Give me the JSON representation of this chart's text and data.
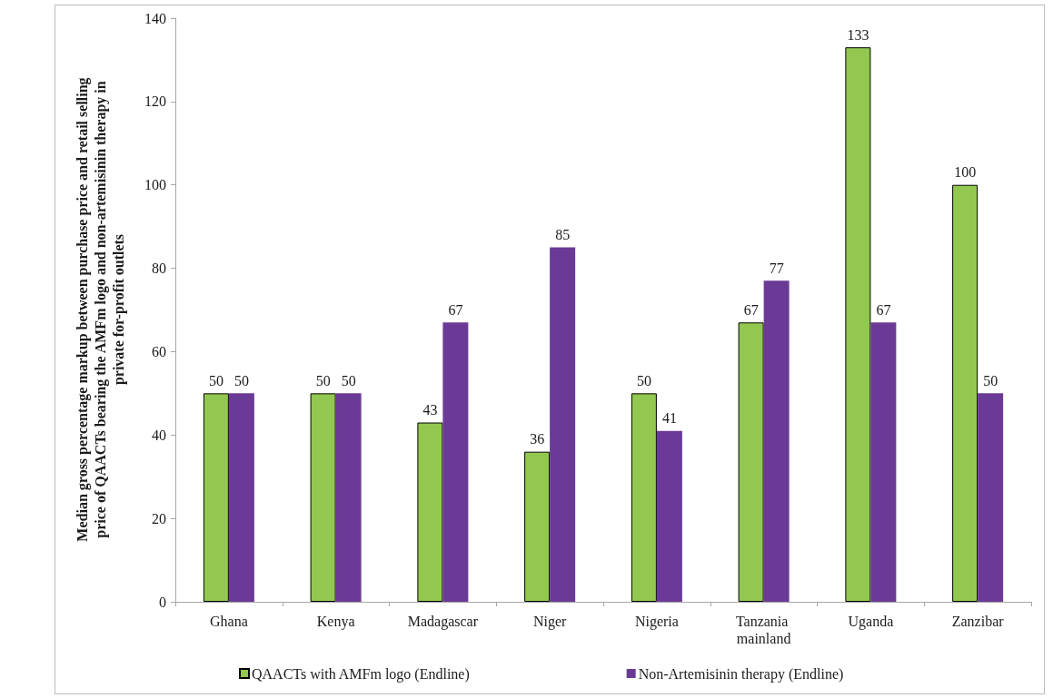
{
  "chart_data": {
    "type": "bar",
    "ylabel": "Median gross percentage markup between purchase price and retail selling price of QAACTs bearing the AMFm logo and non-artemisinin therapy in private for-profit outlets",
    "categories": [
      "Ghana",
      "Kenya",
      "Madagascar",
      "Niger",
      "Nigeria",
      "Tanzania mainland",
      "Uganda",
      "Zanzibar"
    ],
    "series": [
      {
        "name": "QAACTs with AMFm logo (Endline)",
        "color": "#92c84f",
        "values": [
          50,
          50,
          43,
          36,
          50,
          67,
          133,
          100
        ]
      },
      {
        "name": "Non-Artemisinin therapy (Endline)",
        "color": "#6b3a96",
        "values": [
          50,
          50,
          67,
          85,
          41,
          77,
          67,
          50
        ]
      }
    ],
    "ylim": [
      0,
      140
    ],
    "yticks": [
      0,
      20,
      40,
      60,
      80,
      100,
      120,
      140
    ],
    "grid": false,
    "legend": "bottom",
    "data_labels": true
  }
}
